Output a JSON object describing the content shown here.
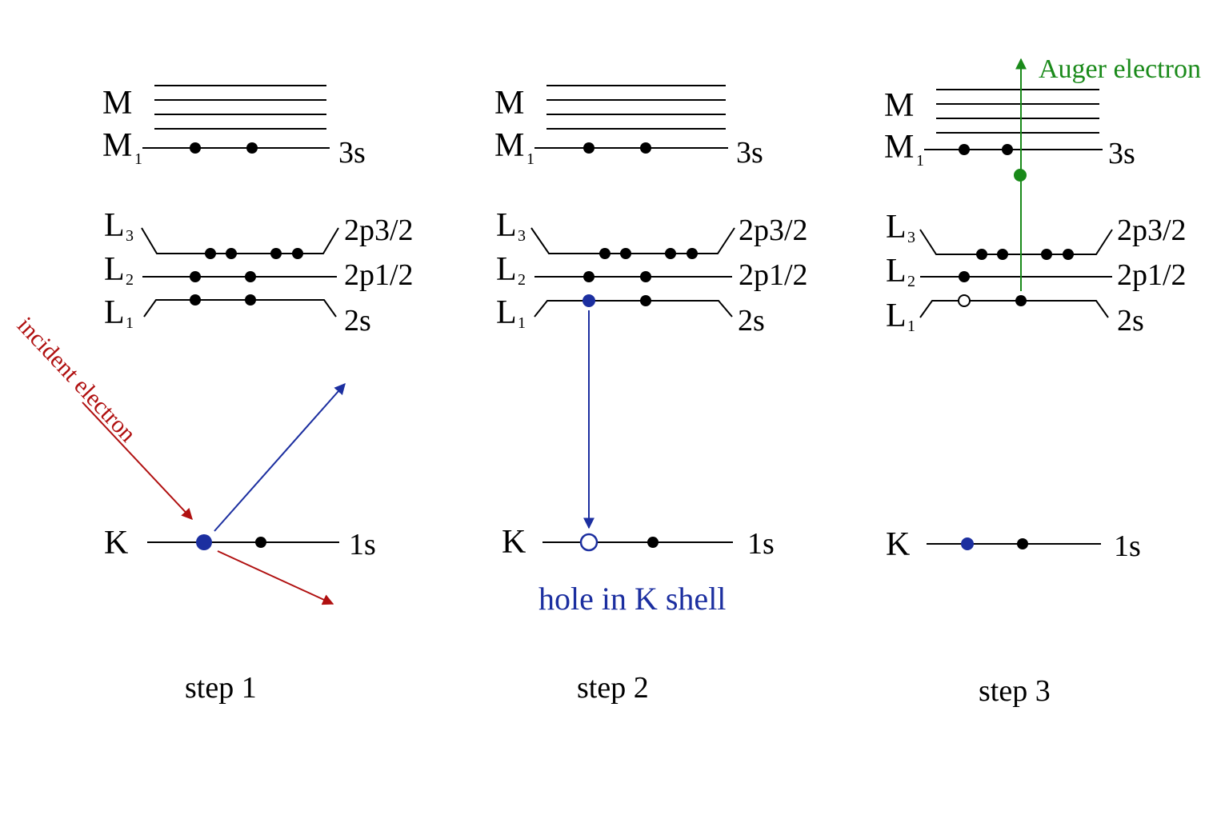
{
  "colors": {
    "incident": "#b01010",
    "transition": "#1c2fa0",
    "auger": "#1a8a1a",
    "ink": "#000000"
  },
  "shells": {
    "M": "M",
    "M1": "M",
    "M1_sub": "1",
    "L3": "L",
    "L3_sub": "3",
    "L2": "L",
    "L2_sub": "2",
    "L1": "L",
    "L1_sub": "1",
    "K": "K"
  },
  "orbitals": {
    "s3": "3s",
    "p32": "2p3/2",
    "p12": "2p1/2",
    "s2": "2s",
    "s1": "1s"
  },
  "annotations": {
    "incident": "incident electron",
    "hole": "hole in K shell",
    "auger": "Auger electron"
  },
  "steps": [
    "step 1",
    "step 2",
    "step 3"
  ]
}
